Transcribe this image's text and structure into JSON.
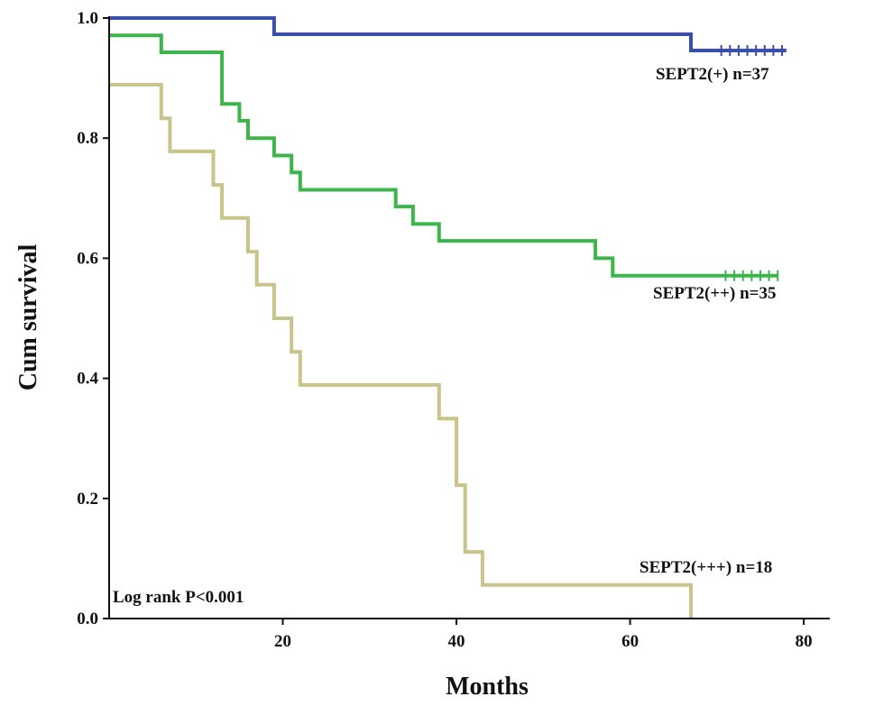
{
  "chart_data": {
    "type": "line",
    "subtype": "kaplan-meier",
    "title": "",
    "xlabel": "Months",
    "ylabel": "Cum survival",
    "xlim": [
      0,
      83
    ],
    "ylim": [
      0,
      1
    ],
    "xticks": [
      20,
      40,
      60,
      80
    ],
    "yticks": [
      0.0,
      0.2,
      0.4,
      0.6,
      0.8,
      1.0
    ],
    "ytick_labels": [
      "0.0",
      "0.2",
      "0.4",
      "0.6",
      "0.8",
      "1.0"
    ],
    "grid": false,
    "annotation": "Log rank P<0.001",
    "series": [
      {
        "name": "SEPT2(+) n=37",
        "color": "#3a4fa8",
        "steps": [
          [
            0,
            1.0
          ],
          [
            19,
            0.973
          ],
          [
            67,
            0.946
          ],
          [
            78,
            0.946
          ]
        ],
        "censored": [
          70.5,
          71.5,
          72.5,
          73.5,
          74.5,
          75.5,
          76.5,
          77.5
        ]
      },
      {
        "name": "SEPT2(++) n=35",
        "color": "#3cb54a",
        "steps": [
          [
            0,
            0.971
          ],
          [
            6,
            0.943
          ],
          [
            13,
            0.857
          ],
          [
            15,
            0.829
          ],
          [
            16,
            0.8
          ],
          [
            19,
            0.771
          ],
          [
            21,
            0.743
          ],
          [
            22,
            0.714
          ],
          [
            33,
            0.686
          ],
          [
            35,
            0.657
          ],
          [
            38,
            0.629
          ],
          [
            56,
            0.6
          ],
          [
            58,
            0.571
          ],
          [
            77,
            0.571
          ]
        ],
        "censored": [
          71,
          72,
          73,
          74,
          75,
          76,
          77
        ]
      },
      {
        "name": "SEPT2(+++) n=18",
        "color": "#c9c48a",
        "steps": [
          [
            0,
            0.889
          ],
          [
            6,
            0.833
          ],
          [
            7,
            0.778
          ],
          [
            12,
            0.722
          ],
          [
            13,
            0.667
          ],
          [
            16,
            0.611
          ],
          [
            17,
            0.556
          ],
          [
            19,
            0.5
          ],
          [
            21,
            0.444
          ],
          [
            22,
            0.389
          ],
          [
            38,
            0.333
          ],
          [
            40,
            0.222
          ],
          [
            41,
            0.111
          ],
          [
            43,
            0.056
          ],
          [
            67,
            0.0
          ]
        ],
        "censored": []
      }
    ]
  }
}
